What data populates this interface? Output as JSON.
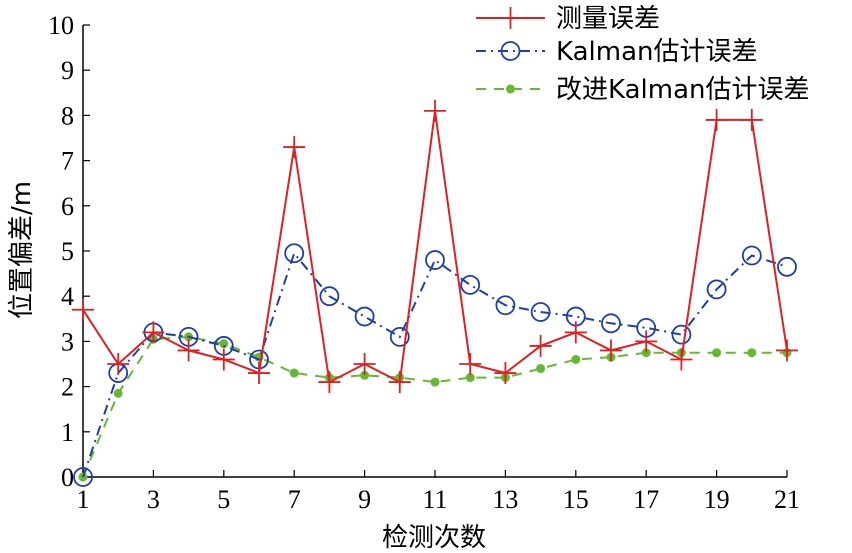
{
  "chart_data": {
    "type": "line",
    "xlabel": "检测次数",
    "ylabel": "位置偏差/m",
    "xlim": [
      1,
      21
    ],
    "ylim": [
      0,
      10
    ],
    "xticks": [
      1,
      3,
      5,
      7,
      9,
      11,
      13,
      15,
      17,
      19,
      21
    ],
    "yticks": [
      0,
      1,
      2,
      3,
      4,
      5,
      6,
      7,
      8,
      9,
      10
    ],
    "xtick_labels": [
      "1",
      "3",
      "5",
      "7",
      "9",
      "11",
      "13",
      "15",
      "17",
      "19",
      "21"
    ],
    "ytick_labels": [
      "0",
      "1",
      "2",
      "3",
      "4",
      "5",
      "6",
      "7",
      "8",
      "9",
      "10"
    ],
    "grid": false,
    "legend_position": "top-right",
    "x": [
      1,
      2,
      3,
      4,
      5,
      6,
      7,
      8,
      9,
      10,
      11,
      12,
      13,
      14,
      15,
      16,
      17,
      18,
      19,
      20,
      21
    ],
    "series": [
      {
        "name": "测量误差",
        "color": "#e02020",
        "line_style": "solid",
        "marker": "plus",
        "values": [
          3.7,
          2.5,
          3.2,
          2.8,
          2.6,
          2.3,
          7.3,
          2.1,
          2.5,
          2.1,
          8.1,
          2.5,
          2.3,
          2.9,
          3.2,
          2.8,
          3.0,
          2.6,
          7.9,
          7.9,
          2.8
        ]
      },
      {
        "name": "Kalman估计误差",
        "color": "#1f3fa8",
        "line_style": "dashdot",
        "marker": "circle",
        "values": [
          0.0,
          2.3,
          3.2,
          3.1,
          2.9,
          2.6,
          4.95,
          4.0,
          3.55,
          3.1,
          4.8,
          4.25,
          3.8,
          3.65,
          3.55,
          3.4,
          3.3,
          3.15,
          4.15,
          4.9,
          4.65
        ]
      },
      {
        "name": "改进Kalman估计误差",
        "color": "#66b832",
        "line_style": "dashed",
        "marker": "dot",
        "values": [
          0.0,
          1.85,
          3.05,
          3.1,
          2.95,
          2.65,
          2.3,
          2.2,
          2.25,
          2.2,
          2.1,
          2.2,
          2.2,
          2.4,
          2.6,
          2.65,
          2.75,
          2.75,
          2.75,
          2.75,
          2.75
        ]
      }
    ]
  }
}
